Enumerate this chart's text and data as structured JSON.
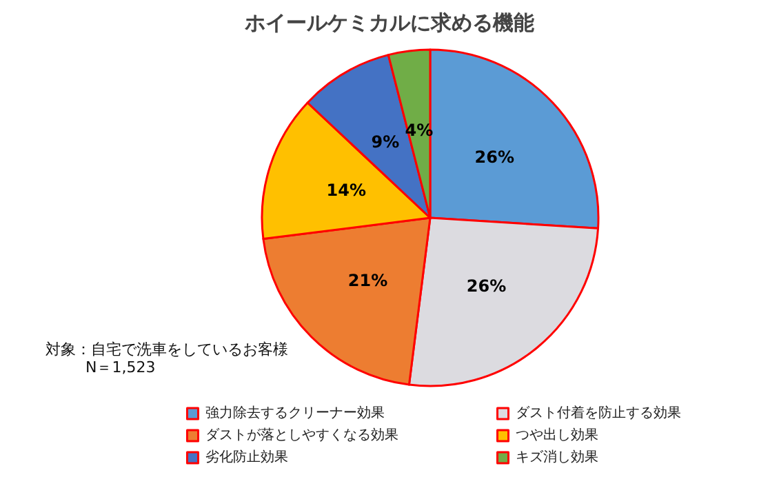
{
  "chart_data": {
    "type": "pie",
    "title": "ホイールケミカルに求める機能",
    "categories": [
      "強力除去するクリーナー効果",
      "ダスト付着を防止する効果",
      "ダストが落としやすくなる効果",
      "つや出し効果",
      "劣化防止効果",
      "キズ消し効果"
    ],
    "values": [
      26,
      26,
      21,
      14,
      9,
      4
    ],
    "colors": [
      "#5b9bd5",
      "#dcdbe0",
      "#ed7d31",
      "#ffc000",
      "#4472c4",
      "#70ad47"
    ],
    "value_labels": [
      "26%",
      "26%",
      "21%",
      "14%",
      "9%",
      "4%"
    ],
    "annotations": [
      "対象：自宅で洗車をしているお客様",
      "N＝1,523"
    ],
    "legend": "bottom"
  }
}
